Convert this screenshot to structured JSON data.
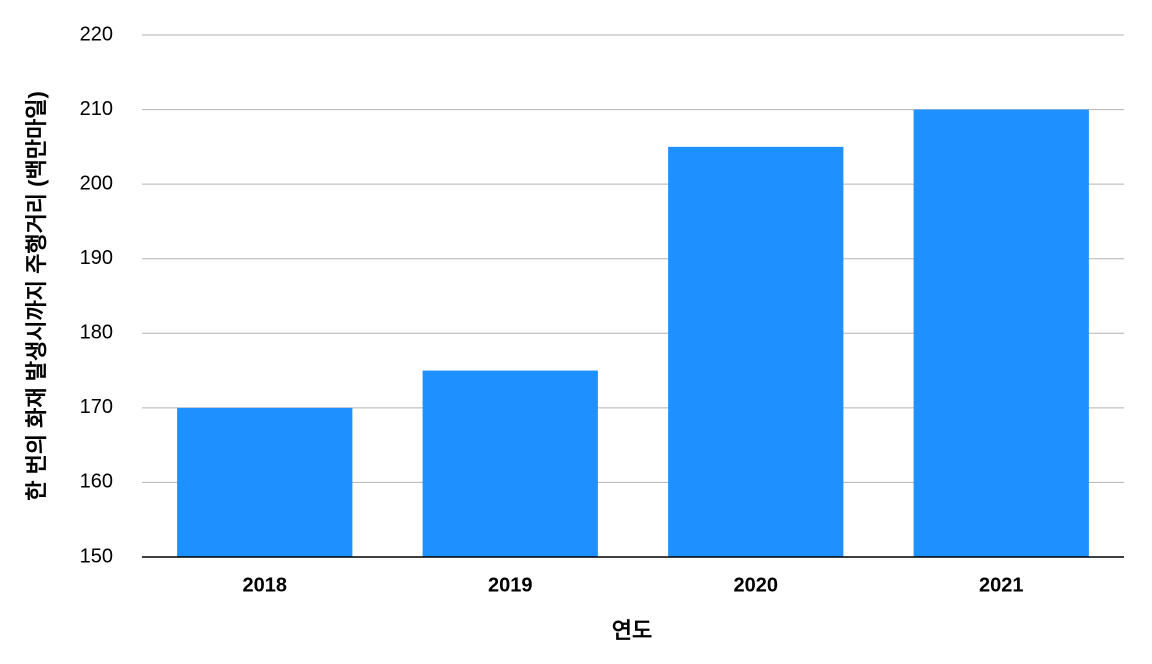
{
  "chart_data": {
    "type": "bar",
    "x_label": "연도",
    "y_label": "한 번의 화재 발생시까지 주행거리 (백만마일)",
    "categories": [
      "2018",
      "2019",
      "2020",
      "2021"
    ],
    "values": [
      170,
      175,
      205,
      210
    ],
    "color": "#1e90ff",
    "ylim": [
      150,
      220
    ],
    "yticks": [
      150,
      160,
      170,
      180,
      190,
      200,
      210,
      220
    ],
    "grid": true
  }
}
